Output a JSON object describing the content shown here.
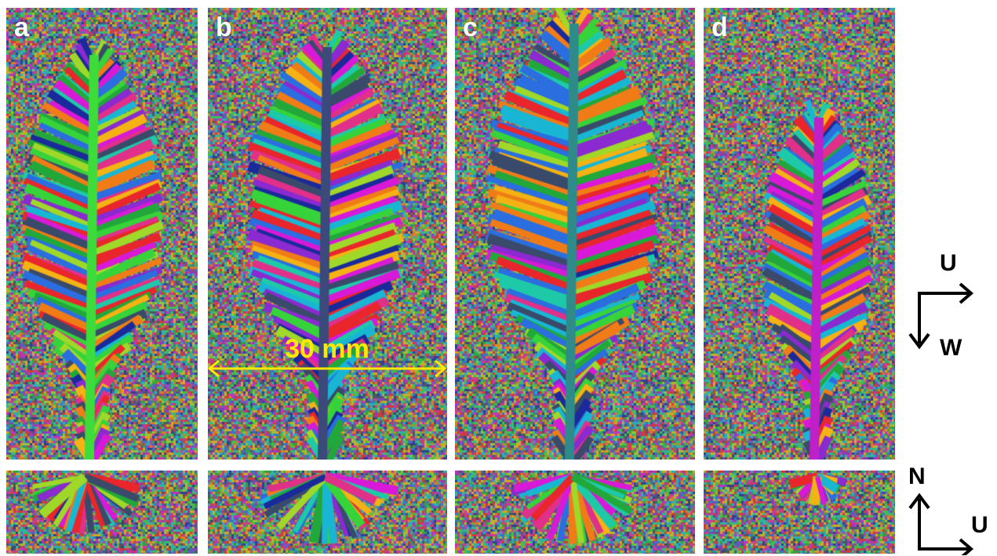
{
  "panels": [
    {
      "label": "a",
      "stem_color": "#3ddc3a"
    },
    {
      "label": "b",
      "stem_color": "#3b4a7a"
    },
    {
      "label": "c",
      "stem_color": "#2f8a8a"
    },
    {
      "label": "d",
      "stem_color": "#c020c8"
    }
  ],
  "scale_bar": {
    "text": "30 mm",
    "color": "#ffe800"
  },
  "axes_top": {
    "right_label": "U",
    "down_label": "W"
  },
  "axes_bottom": {
    "up_label": "N",
    "right_label": "U"
  },
  "palette": [
    "#e8262b",
    "#f07c18",
    "#f4b214",
    "#22a83a",
    "#36d33a",
    "#19b6d4",
    "#2a6ee0",
    "#1a2a9a",
    "#8a2ad0",
    "#d81ad8",
    "#e0308a",
    "#3a4a6a",
    "#1ec9a8",
    "#a0d82a"
  ]
}
